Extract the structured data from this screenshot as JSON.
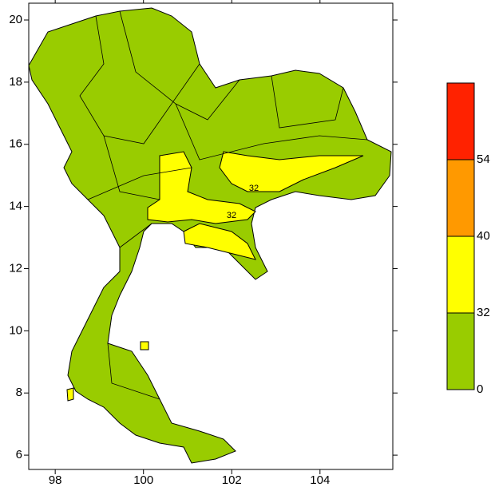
{
  "chart_data": {
    "type": "map",
    "xlim": [
      97.4,
      105.65
    ],
    "xticks": [
      98,
      100,
      102,
      104
    ],
    "ylim": [
      5.54,
      20.54
    ],
    "yticks": [
      6,
      8,
      10,
      12,
      14,
      16,
      18,
      20
    ],
    "contour_labels": [
      32,
      32
    ],
    "colorbar": {
      "levels": [
        0,
        32,
        40,
        54
      ],
      "colors": [
        "#99cc00",
        "#ffff00",
        "#ff9900",
        "#ff2200"
      ]
    }
  }
}
